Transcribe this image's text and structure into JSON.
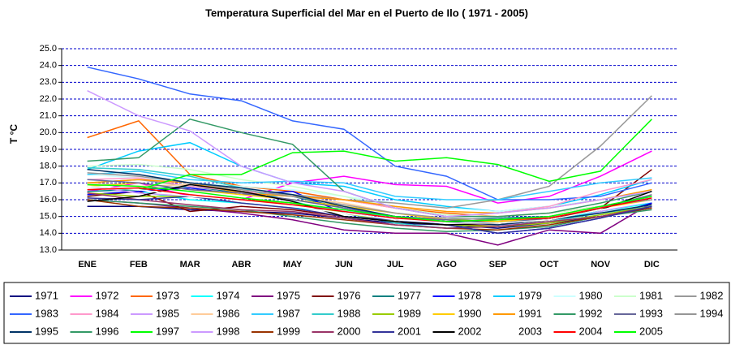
{
  "chart_data": {
    "type": "line",
    "title": "Temperatura Superficial del Mar en el Puerto de Ilo ( 1971 - 2005)",
    "y_label": "T °C",
    "categories": [
      "ENE",
      "FEB",
      "MAR",
      "ABR",
      "MAY",
      "JUN",
      "JUL",
      "AGO",
      "SEP",
      "OCT",
      "NOV",
      "DIC"
    ],
    "ylim": [
      13,
      25
    ],
    "yticks": [
      {
        "value": 13,
        "label": "13.0"
      },
      {
        "value": 14,
        "label": "14.0"
      },
      {
        "value": 15,
        "label": "15.0"
      },
      {
        "value": 16,
        "label": "16.0"
      },
      {
        "value": 17,
        "label": "17.0"
      },
      {
        "value": 18,
        "label": "18.0"
      },
      {
        "value": 19,
        "label": "19.0"
      },
      {
        "value": 20,
        "label": "20.0"
      },
      {
        "value": 21,
        "label": "21.0"
      },
      {
        "value": 22,
        "label": "22.0"
      },
      {
        "value": 23,
        "label": "23.0"
      },
      {
        "value": 24,
        "label": "24.0"
      },
      {
        "value": 25,
        "label": "25.0"
      }
    ],
    "grid": true,
    "grid_color": "#0000cc",
    "legend": "bottom",
    "series": [
      {
        "name": "1971",
        "color": "#000080",
        "values": [
          15.6,
          15.6,
          15.4,
          15.3,
          15.2,
          14.9,
          14.6,
          14.5,
          14.3,
          14.6,
          15.0,
          15.5
        ]
      },
      {
        "name": "1972",
        "color": "#ff00ff",
        "values": [
          16.5,
          17.0,
          16.2,
          16.0,
          17.0,
          17.4,
          16.9,
          16.8,
          15.8,
          16.2,
          17.4,
          18.9
        ]
      },
      {
        "name": "1973",
        "color": "#ff6600",
        "values": [
          19.7,
          20.7,
          17.5,
          16.8,
          16.5,
          16.0,
          15.5,
          15.2,
          15.0,
          15.2,
          15.6,
          16.2
        ]
      },
      {
        "name": "1974",
        "color": "#00ffff",
        "values": [
          16.2,
          16.5,
          16.0,
          15.8,
          15.5,
          15.3,
          15.0,
          14.8,
          14.6,
          14.8,
          15.3,
          15.8
        ]
      },
      {
        "name": "1975",
        "color": "#800080",
        "values": [
          16.0,
          15.8,
          15.5,
          15.2,
          14.8,
          14.2,
          14.0,
          14.0,
          13.3,
          14.2,
          14.0,
          15.8
        ]
      },
      {
        "name": "1976",
        "color": "#800000",
        "values": [
          16.2,
          16.5,
          15.3,
          15.6,
          15.4,
          15.0,
          14.7,
          14.5,
          14.5,
          14.8,
          15.5,
          17.8
        ]
      },
      {
        "name": "1977",
        "color": "#008080",
        "values": [
          16.5,
          16.6,
          16.8,
          16.4,
          16.2,
          15.5,
          15.0,
          14.8,
          14.9,
          15.0,
          15.5,
          16.2
        ]
      },
      {
        "name": "1978",
        "color": "#0000ff",
        "values": [
          16.3,
          16.5,
          16.7,
          16.3,
          16.5,
          15.2,
          14.8,
          14.5,
          14.0,
          14.3,
          14.9,
          15.8
        ]
      },
      {
        "name": "1979",
        "color": "#00ccff",
        "values": [
          17.8,
          18.9,
          19.4,
          18.0,
          17.0,
          16.8,
          16.0,
          15.6,
          15.3,
          15.6,
          16.3,
          17.2
        ]
      },
      {
        "name": "1980",
        "color": "#ccffff",
        "values": [
          17.5,
          17.3,
          17.0,
          16.8,
          16.6,
          16.2,
          15.8,
          15.5,
          15.3,
          15.6,
          16.0,
          16.5
        ]
      },
      {
        "name": "1981",
        "color": "#ccffcc",
        "values": [
          18.0,
          18.1,
          17.8,
          17.2,
          16.8,
          16.2,
          15.5,
          15.1,
          15.0,
          15.2,
          15.6,
          16.2
        ]
      },
      {
        "name": "1982",
        "color": "#999999",
        "values": [
          17.0,
          17.2,
          16.8,
          16.5,
          16.3,
          16.0,
          15.8,
          15.5,
          16.0,
          16.8,
          19.2,
          22.2
        ]
      },
      {
        "name": "1983",
        "color": "#3366ff",
        "values": [
          23.9,
          23.2,
          22.3,
          21.9,
          20.7,
          20.2,
          18.0,
          17.4,
          16.0,
          16.0,
          16.2,
          17.0
        ]
      },
      {
        "name": "1984",
        "color": "#ff99cc",
        "values": [
          17.2,
          17.3,
          16.8,
          16.5,
          16.2,
          16.0,
          15.5,
          15.0,
          15.2,
          15.6,
          16.5,
          17.2
        ]
      },
      {
        "name": "1985",
        "color": "#cc99ff",
        "values": [
          16.8,
          16.4,
          16.2,
          16.0,
          15.7,
          15.4,
          15.0,
          14.6,
          14.5,
          14.6,
          15.3,
          15.9
        ]
      },
      {
        "name": "1986",
        "color": "#ffcc99",
        "values": [
          17.0,
          16.8,
          16.9,
          16.6,
          16.2,
          15.8,
          15.2,
          14.8,
          14.7,
          15.0,
          15.5,
          16.3
        ]
      },
      {
        "name": "1987",
        "color": "#33ccff",
        "values": [
          17.5,
          17.7,
          17.2,
          17.0,
          17.1,
          17.0,
          16.2,
          16.0,
          16.0,
          16.5,
          17.0,
          17.3
        ]
      },
      {
        "name": "1988",
        "color": "#33cccc",
        "values": [
          17.9,
          17.8,
          17.4,
          16.7,
          15.9,
          15.2,
          14.6,
          14.3,
          14.4,
          14.7,
          15.2,
          15.6
        ]
      },
      {
        "name": "1989",
        "color": "#99cc00",
        "values": [
          16.4,
          16.2,
          16.2,
          16.0,
          15.8,
          15.2,
          14.7,
          14.5,
          14.4,
          14.6,
          15.1,
          15.6
        ]
      },
      {
        "name": "1990",
        "color": "#ffcc00",
        "values": [
          16.8,
          17.0,
          16.6,
          16.3,
          16.0,
          15.6,
          15.2,
          14.8,
          14.7,
          14.9,
          15.5,
          16.0
        ]
      },
      {
        "name": "1991",
        "color": "#ff9900",
        "values": [
          17.0,
          17.2,
          17.0,
          16.4,
          16.2,
          16.0,
          15.6,
          15.3,
          15.2,
          15.5,
          16.0,
          16.6
        ]
      },
      {
        "name": "1992",
        "color": "#339966",
        "values": [
          18.3,
          18.5,
          20.8,
          20.0,
          19.3,
          16.5,
          15.5,
          15.0,
          15.0,
          15.2,
          15.8,
          16.5
        ]
      },
      {
        "name": "1993",
        "color": "#666699",
        "values": [
          17.2,
          17.0,
          16.6,
          16.4,
          16.0,
          15.5,
          15.0,
          14.8,
          14.6,
          14.9,
          15.5,
          16.3
        ]
      },
      {
        "name": "1994",
        "color": "#969696",
        "values": [
          17.6,
          17.4,
          17.0,
          16.6,
          16.2,
          15.7,
          15.2,
          14.9,
          14.8,
          15.0,
          15.6,
          16.0
        ]
      },
      {
        "name": "1995",
        "color": "#003366",
        "values": [
          17.8,
          17.5,
          17.0,
          16.7,
          16.3,
          15.6,
          15.0,
          14.7,
          14.5,
          14.8,
          15.2,
          15.7
        ]
      },
      {
        "name": "1996",
        "color": "#339966",
        "values": [
          16.0,
          15.8,
          15.6,
          15.4,
          15.0,
          14.6,
          14.3,
          14.1,
          14.2,
          14.4,
          15.0,
          15.4
        ]
      },
      {
        "name": "1997",
        "color": "#00ff00",
        "values": [
          16.8,
          16.6,
          17.5,
          17.5,
          18.8,
          18.9,
          18.3,
          18.5,
          18.1,
          17.1,
          17.7,
          20.8
        ]
      },
      {
        "name": "1998",
        "color": "#cc99ff",
        "values": [
          22.5,
          21.0,
          20.1,
          18.0,
          17.0,
          16.5,
          15.5,
          15.0,
          15.2,
          15.5,
          16.0,
          16.5
        ]
      },
      {
        "name": "1999",
        "color": "#993300",
        "values": [
          16.0,
          15.6,
          15.5,
          15.3,
          15.1,
          14.8,
          14.5,
          14.3,
          14.2,
          14.5,
          15.0,
          15.5
        ]
      },
      {
        "name": "2000",
        "color": "#993366",
        "values": [
          16.4,
          16.0,
          15.7,
          15.4,
          15.3,
          14.9,
          14.5,
          14.3,
          14.4,
          14.7,
          15.0,
          15.6
        ]
      },
      {
        "name": "2001",
        "color": "#333399",
        "values": [
          16.1,
          16.0,
          16.2,
          15.8,
          15.5,
          15.0,
          14.8,
          14.5,
          14.0,
          14.3,
          14.9,
          15.6
        ]
      },
      {
        "name": "2002",
        "color": "#000000",
        "values": [
          15.9,
          16.2,
          16.9,
          16.5,
          15.9,
          15.0,
          14.7,
          14.5,
          14.6,
          14.8,
          15.4,
          16.5
        ]
      },
      {
        "name": "2003",
        "color": "#ffffff",
        "values": [
          16.8,
          16.6,
          16.2,
          16.0,
          15.6,
          15.2,
          14.8,
          14.6,
          14.6,
          14.8,
          15.4,
          15.9
        ]
      },
      {
        "name": "2004",
        "color": "#ff0000",
        "values": [
          16.6,
          16.7,
          16.3,
          16.0,
          15.7,
          15.3,
          14.9,
          14.7,
          14.8,
          14.9,
          15.5,
          16.1
        ]
      },
      {
        "name": "2005",
        "color": "#00ff00",
        "values": [
          16.9,
          16.8,
          16.5,
          16.1,
          15.8,
          15.4,
          15.0,
          14.7,
          14.8,
          15.0,
          15.6,
          16.2
        ]
      }
    ]
  }
}
